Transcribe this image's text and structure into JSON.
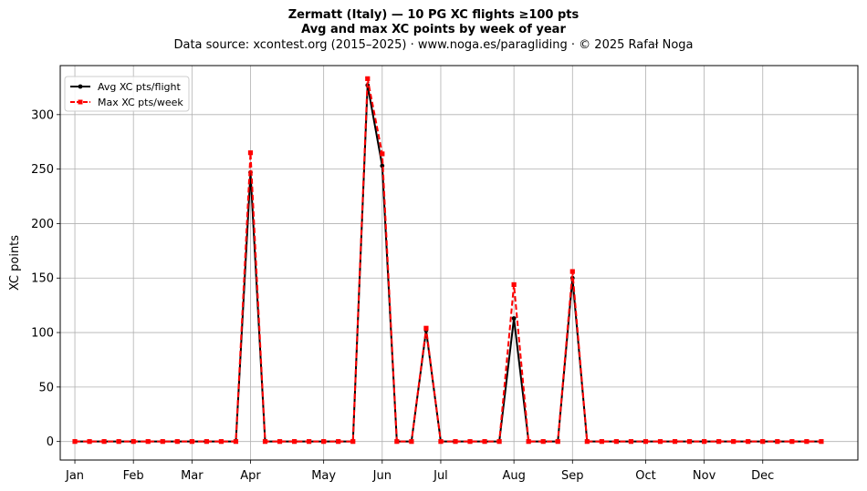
{
  "titles": {
    "line1": "Zermatt (Italy)  —  10 PG XC flights ≥100 pts",
    "line2": "Avg and max XC points by week of year",
    "line3": "Data source: xcontest.org (2015–2025)  ·  www.noga.es/paragliding  ·  © 2025 Rafał Noga"
  },
  "chart_data": {
    "type": "line",
    "title": "Zermatt (Italy)  —  10 PG XC flights ≥100 pts",
    "subtitle": "Avg and max XC points by week of year",
    "xlabel": "",
    "ylabel": "XC points",
    "x": [
      1,
      2,
      3,
      4,
      5,
      6,
      7,
      8,
      9,
      10,
      11,
      12,
      13,
      14,
      15,
      16,
      17,
      18,
      19,
      20,
      21,
      22,
      23,
      24,
      25,
      26,
      27,
      28,
      29,
      30,
      31,
      32,
      33,
      34,
      35,
      36,
      37,
      38,
      39,
      40,
      41,
      42,
      43,
      44,
      45,
      46,
      47,
      48,
      49,
      50,
      51,
      52
    ],
    "xlim": [
      0,
      54.5
    ],
    "ylim": [
      -17,
      345
    ],
    "yticks": [
      0,
      50,
      100,
      150,
      200,
      250,
      300
    ],
    "xticks": [
      {
        "x": 1,
        "label": "Jan"
      },
      {
        "x": 5,
        "label": "Feb"
      },
      {
        "x": 9,
        "label": "Mar"
      },
      {
        "x": 13,
        "label": "Apr"
      },
      {
        "x": 18,
        "label": "May"
      },
      {
        "x": 22,
        "label": "Jun"
      },
      {
        "x": 26,
        "label": "Jul"
      },
      {
        "x": 31,
        "label": "Aug"
      },
      {
        "x": 35,
        "label": "Sep"
      },
      {
        "x": 40,
        "label": "Oct"
      },
      {
        "x": 44,
        "label": "Nov"
      },
      {
        "x": 48,
        "label": "Dec"
      }
    ],
    "grid": true,
    "legend_position": "top-left",
    "series": [
      {
        "name": "Avg XC pts/flight",
        "color": "#000000",
        "style": "solid",
        "marker": "circle",
        "values": [
          0,
          0,
          0,
          0,
          0,
          0,
          0,
          0,
          0,
          0,
          0,
          0,
          247,
          0,
          0,
          0,
          0,
          0,
          0,
          0,
          327,
          253,
          0,
          0,
          102,
          0,
          0,
          0,
          0,
          0,
          113,
          0,
          0,
          0,
          150,
          0,
          0,
          0,
          0,
          0,
          0,
          0,
          0,
          0,
          0,
          0,
          0,
          0,
          0,
          0,
          0,
          0
        ]
      },
      {
        "name": "Max XC pts/week",
        "color": "#ff0000",
        "style": "dashed",
        "marker": "square",
        "values": [
          0,
          0,
          0,
          0,
          0,
          0,
          0,
          0,
          0,
          0,
          0,
          0,
          265,
          0,
          0,
          0,
          0,
          0,
          0,
          0,
          333,
          264,
          0,
          0,
          104,
          0,
          0,
          0,
          0,
          0,
          144,
          0,
          0,
          0,
          156,
          0,
          0,
          0,
          0,
          0,
          0,
          0,
          0,
          0,
          0,
          0,
          0,
          0,
          0,
          0,
          0,
          0
        ]
      }
    ]
  }
}
